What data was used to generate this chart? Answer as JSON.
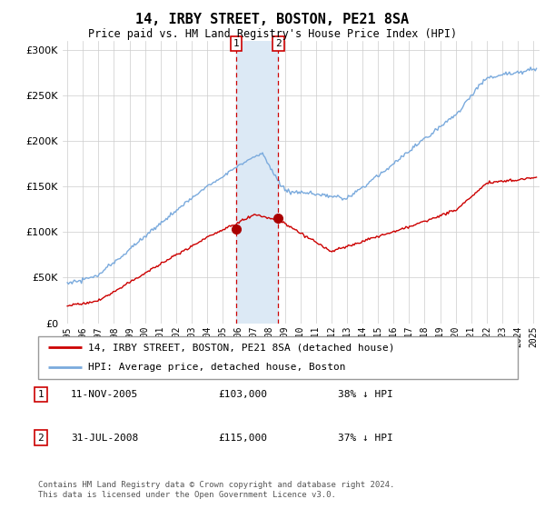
{
  "title": "14, IRBY STREET, BOSTON, PE21 8SA",
  "subtitle": "Price paid vs. HM Land Registry's House Price Index (HPI)",
  "footer": "Contains HM Land Registry data © Crown copyright and database right 2024.\nThis data is licensed under the Open Government Licence v3.0.",
  "legend_line1": "14, IRBY STREET, BOSTON, PE21 8SA (detached house)",
  "legend_line2": "HPI: Average price, detached house, Boston",
  "transaction1_label": "1",
  "transaction1_date": "11-NOV-2005",
  "transaction1_price": "£103,000",
  "transaction1_hpi": "38% ↓ HPI",
  "transaction2_label": "2",
  "transaction2_date": "31-JUL-2008",
  "transaction2_price": "£115,000",
  "transaction2_hpi": "37% ↓ HPI",
  "hpi_color": "#7aaadd",
  "price_color": "#cc0000",
  "shading_color": "#dce9f5",
  "marker_color": "#aa0000",
  "ylim": [
    0,
    310000
  ],
  "yticks": [
    0,
    50000,
    100000,
    150000,
    200000,
    250000,
    300000
  ],
  "transaction1_x": 2005.87,
  "transaction2_x": 2008.58,
  "transaction1_y": 103000,
  "transaction2_y": 115000,
  "xmin": 1995.0,
  "xmax": 2025.2
}
